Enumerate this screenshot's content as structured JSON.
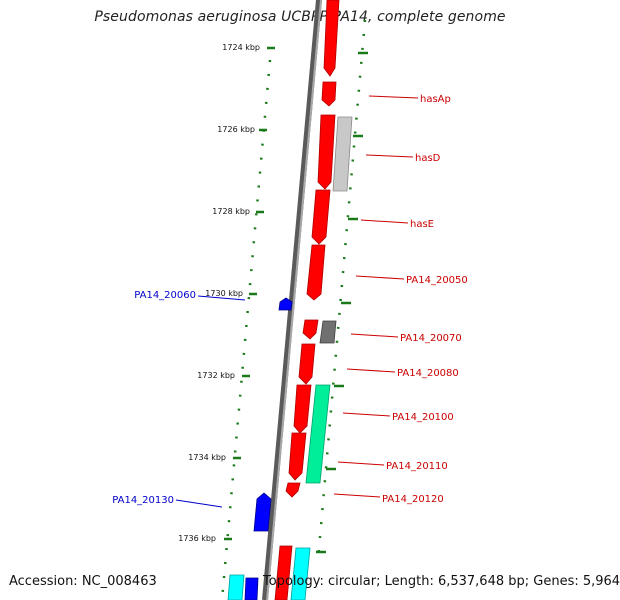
{
  "title": "Pseudomonas aeruginosa UCBPP-PA14, complete genome",
  "footer": {
    "accession": "Accession: NC_008463",
    "topology": "Topology: circular; Length: 6,537,648 bp; Genes: 5,964"
  },
  "colors": {
    "backbone": "#808080",
    "tick": "#1a7a1a",
    "label_right": "#cc0000",
    "label_left": "#0000cc"
  },
  "scale": {
    "ticks": [
      "1724 kbp",
      "1726 kbp",
      "1728 kbp",
      "1730 kbp",
      "1732 kbp",
      "1734 kbp",
      "1736 kbp"
    ]
  },
  "gene_labels": {
    "right": [
      "hasAp",
      "hasD",
      "hasE",
      "PA14_20050",
      "PA14_20070",
      "PA14_20080",
      "PA14_20100",
      "PA14_20110",
      "PA14_20120"
    ],
    "left": [
      "PA14_20060",
      "PA14_20130"
    ]
  }
}
